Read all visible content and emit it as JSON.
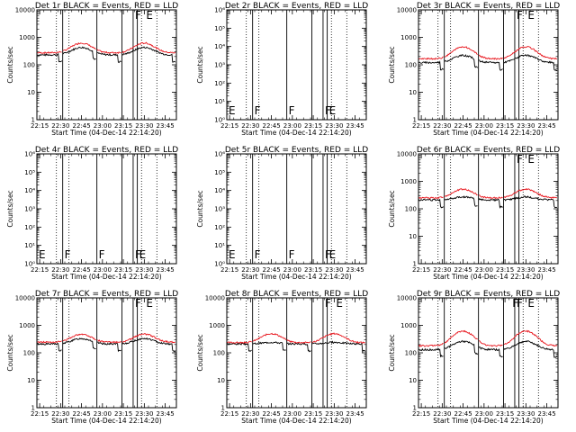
{
  "colors": {
    "events": "#000000",
    "lld": "#e8141b"
  },
  "chart_data": [
    {
      "type": "line",
      "title": "Det 1r BLACK = Events, RED = LLD",
      "xlabel": "Start Time (04-Dec-14 22:14:20)",
      "ylabel": "Counts/sec",
      "x_ticks": [
        "22:15",
        "22:30",
        "22:45",
        "23:00",
        "23:15",
        "23:30",
        "23:45"
      ],
      "x_tick_minutes": [
        15,
        30,
        45,
        60,
        75,
        90,
        105
      ],
      "xlim_minutes": [
        13,
        113
      ],
      "yscale": "log",
      "ylim": [
        1,
        10000
      ],
      "y_ticks": [
        "1",
        "10",
        "100",
        "1000",
        "10000"
      ],
      "y_tick_values": [
        1,
        10,
        100,
        1000,
        10000
      ],
      "has_data": true,
      "events_base": 230,
      "lld_base": 275,
      "hump_events": 430,
      "hump_lld": 620,
      "solid_line_minutes": [
        31.5,
        56,
        74,
        82,
        85
      ],
      "dotted_line_minutes": [
        27,
        36,
        88,
        99
      ],
      "flags": [
        {
          "label": "F",
          "minute": 82
        },
        {
          "label": "E",
          "minute": 90
        }
      ]
    },
    {
      "type": "line",
      "title": "Det 2r BLACK = Events, RED = LLD",
      "xlabel": "Start Time (04-Dec-14 22:14:20)",
      "ylabel": "Counts/sec",
      "x_ticks": [
        "22:15",
        "22:30",
        "22:45",
        "23:00",
        "23:15",
        "23:30",
        "23:45"
      ],
      "x_tick_minutes": [
        15,
        30,
        45,
        60,
        75,
        90,
        105
      ],
      "xlim_minutes": [
        13,
        113
      ],
      "yscale": "log",
      "ylim": [
        1,
        1000000
      ],
      "y_ticks": [
        "10⁰",
        "10¹",
        "10²",
        "10³",
        "10⁴",
        "10⁵",
        "10⁶"
      ],
      "y_tick_values": [
        1,
        10,
        100,
        1000,
        10000,
        100000,
        1000000
      ],
      "has_data": false,
      "solid_line_minutes": [
        31.5,
        56,
        74,
        82,
        85
      ],
      "dotted_line_minutes": [
        27,
        36,
        88,
        99
      ],
      "flags": [
        {
          "label": "E",
          "minute": 13
        },
        {
          "label": "F",
          "minute": 31.5
        },
        {
          "label": "F",
          "minute": 56
        },
        {
          "label": "F",
          "minute": 82
        },
        {
          "label": "E",
          "minute": 85
        }
      ]
    },
    {
      "type": "line",
      "title": "Det 3r BLACK = Events, RED = LLD",
      "xlabel": "Start Time (04-Dec-14 22:14:20)",
      "ylabel": "Counts/sec",
      "x_ticks": [
        "22:15",
        "22:30",
        "22:45",
        "23:00",
        "23:15",
        "23:30",
        "23:45"
      ],
      "x_tick_minutes": [
        15,
        30,
        45,
        60,
        75,
        90,
        105
      ],
      "xlim_minutes": [
        13,
        113
      ],
      "yscale": "log",
      "ylim": [
        1,
        10000
      ],
      "y_ticks": [
        "1",
        "10",
        "100",
        "1000",
        "10000"
      ],
      "y_tick_values": [
        1,
        10,
        100,
        1000,
        10000
      ],
      "has_data": true,
      "events_base": 120,
      "lld_base": 165,
      "hump_events": 220,
      "hump_lld": 450,
      "solid_line_minutes": [
        31.5,
        56,
        74,
        82,
        85
      ],
      "dotted_line_minutes": [
        27,
        36,
        88,
        99
      ],
      "flags": [
        {
          "label": "F",
          "minute": 82
        },
        {
          "label": "E",
          "minute": 90
        }
      ]
    },
    {
      "type": "line",
      "title": "Det 4r BLACK = Events, RED = LLD",
      "xlabel": "Start Time (04-Dec-14 22:14:20)",
      "ylabel": "Counts/sec",
      "x_ticks": [
        "22:15",
        "22:30",
        "22:45",
        "23:00",
        "23:15",
        "23:30",
        "23:45"
      ],
      "x_tick_minutes": [
        15,
        30,
        45,
        60,
        75,
        90,
        105
      ],
      "xlim_minutes": [
        13,
        113
      ],
      "yscale": "log",
      "ylim": [
        1,
        1000000
      ],
      "y_ticks": [
        "10⁰",
        "10¹",
        "10²",
        "10³",
        "10⁴",
        "10⁵",
        "10⁶"
      ],
      "y_tick_values": [
        1,
        10,
        100,
        1000,
        10000,
        100000,
        1000000
      ],
      "has_data": false,
      "solid_line_minutes": [
        31.5,
        56,
        74,
        82,
        85
      ],
      "dotted_line_minutes": [
        27,
        36,
        88,
        99
      ],
      "flags": [
        {
          "label": "E",
          "minute": 13
        },
        {
          "label": "F",
          "minute": 31.5
        },
        {
          "label": "F",
          "minute": 56
        },
        {
          "label": "F",
          "minute": 82
        },
        {
          "label": "E",
          "minute": 85
        }
      ]
    },
    {
      "type": "line",
      "title": "Det 5r BLACK = Events, RED = LLD",
      "xlabel": "Start Time (04-Dec-14 22:14:20)",
      "ylabel": "Counts/sec",
      "x_ticks": [
        "22:15",
        "22:30",
        "22:45",
        "23:00",
        "23:15",
        "23:30",
        "23:45"
      ],
      "x_tick_minutes": [
        15,
        30,
        45,
        60,
        75,
        90,
        105
      ],
      "xlim_minutes": [
        13,
        113
      ],
      "yscale": "log",
      "ylim": [
        1,
        1000000
      ],
      "y_ticks": [
        "10⁰",
        "10¹",
        "10²",
        "10³",
        "10⁴",
        "10⁵",
        "10⁶"
      ],
      "y_tick_values": [
        1,
        10,
        100,
        1000,
        10000,
        100000,
        1000000
      ],
      "has_data": false,
      "solid_line_minutes": [
        31.5,
        56,
        74,
        82,
        85
      ],
      "dotted_line_minutes": [
        27,
        36,
        88,
        99
      ],
      "flags": [
        {
          "label": "E",
          "minute": 13
        },
        {
          "label": "F",
          "minute": 31.5
        },
        {
          "label": "F",
          "minute": 56
        },
        {
          "label": "F",
          "minute": 82
        },
        {
          "label": "E",
          "minute": 85
        }
      ]
    },
    {
      "type": "line",
      "title": "Det 6r BLACK = Events, RED = LLD",
      "xlabel": "Start Time (04-Dec-14 22:14:20)",
      "ylabel": "Counts/sec",
      "x_ticks": [
        "22:15",
        "22:30",
        "22:45",
        "23:00",
        "23:15",
        "23:30",
        "23:45"
      ],
      "x_tick_minutes": [
        15,
        30,
        45,
        60,
        75,
        90,
        105
      ],
      "xlim_minutes": [
        13,
        113
      ],
      "yscale": "log",
      "ylim": [
        1,
        10000
      ],
      "y_ticks": [
        "1",
        "10",
        "100",
        "1000",
        "10000"
      ],
      "y_tick_values": [
        1,
        10,
        100,
        1000,
        10000
      ],
      "has_data": true,
      "events_base": 210,
      "lld_base": 250,
      "hump_events": 270,
      "hump_lld": 520,
      "solid_line_minutes": [
        31.5,
        56,
        74,
        82,
        85
      ],
      "dotted_line_minutes": [
        27,
        36,
        88,
        99
      ],
      "flags": [
        {
          "label": "F",
          "minute": 82
        },
        {
          "label": "E",
          "minute": 90
        }
      ]
    },
    {
      "type": "line",
      "title": "Det 7r BLACK = Events, RED = LLD",
      "xlabel": "Start Time (04-Dec-14 22:14:20)",
      "ylabel": "Counts/sec",
      "x_ticks": [
        "22:15",
        "22:30",
        "22:45",
        "23:00",
        "23:15",
        "23:30",
        "23:45"
      ],
      "x_tick_minutes": [
        15,
        30,
        45,
        60,
        75,
        90,
        105
      ],
      "xlim_minutes": [
        13,
        113
      ],
      "yscale": "log",
      "ylim": [
        1,
        10000
      ],
      "y_ticks": [
        "1",
        "10",
        "100",
        "1000",
        "10000"
      ],
      "y_tick_values": [
        1,
        10,
        100,
        1000,
        10000
      ],
      "has_data": true,
      "events_base": 210,
      "lld_base": 245,
      "hump_events": 330,
      "hump_lld": 480,
      "solid_line_minutes": [
        31.5,
        56,
        74,
        82,
        85
      ],
      "dotted_line_minutes": [
        27,
        36,
        88,
        99
      ],
      "flags": [
        {
          "label": "F",
          "minute": 82
        },
        {
          "label": "E",
          "minute": 90
        }
      ]
    },
    {
      "type": "line",
      "title": "Det 8r BLACK = Events, RED = LLD",
      "xlabel": "Start Time (04-Dec-14 22:14:20)",
      "ylabel": "Counts/sec",
      "x_ticks": [
        "22:15",
        "22:30",
        "22:45",
        "23:00",
        "23:15",
        "23:30",
        "23:45"
      ],
      "x_tick_minutes": [
        15,
        30,
        45,
        60,
        75,
        90,
        105
      ],
      "xlim_minutes": [
        13,
        113
      ],
      "yscale": "log",
      "ylim": [
        1,
        10000
      ],
      "y_ticks": [
        "1",
        "10",
        "100",
        "1000",
        "10000"
      ],
      "y_tick_values": [
        1,
        10,
        100,
        1000,
        10000
      ],
      "has_data": true,
      "events_base": 210,
      "lld_base": 235,
      "hump_events": 240,
      "hump_lld": 500,
      "solid_line_minutes": [
        31.5,
        56,
        74,
        82,
        85
      ],
      "dotted_line_minutes": [
        27,
        36,
        88,
        99
      ],
      "flags": [
        {
          "label": "F",
          "minute": 82
        },
        {
          "label": "E",
          "minute": 90
        }
      ]
    },
    {
      "type": "line",
      "title": "Det 9r BLACK = Events, RED = LLD",
      "xlabel": "Start Time (04-Dec-14 22:14:20)",
      "ylabel": "Counts/sec",
      "x_ticks": [
        "22:15",
        "22:30",
        "22:45",
        "23:00",
        "23:15",
        "23:30",
        "23:45"
      ],
      "x_tick_minutes": [
        15,
        30,
        45,
        60,
        75,
        90,
        105
      ],
      "xlim_minutes": [
        13,
        113
      ],
      "yscale": "log",
      "ylim": [
        1,
        10000
      ],
      "y_ticks": [
        "1",
        "10",
        "100",
        "1000",
        "10000"
      ],
      "y_tick_values": [
        1,
        10,
        100,
        1000,
        10000
      ],
      "has_data": true,
      "events_base": 130,
      "lld_base": 180,
      "hump_events": 260,
      "hump_lld": 620,
      "solid_line_minutes": [
        31.5,
        56,
        74,
        82,
        85
      ],
      "dotted_line_minutes": [
        27,
        36,
        88,
        99
      ],
      "flags": [
        {
          "label": "F",
          "minute": 79
        },
        {
          "label": "F",
          "minute": 82
        },
        {
          "label": "E",
          "minute": 90
        }
      ]
    }
  ]
}
